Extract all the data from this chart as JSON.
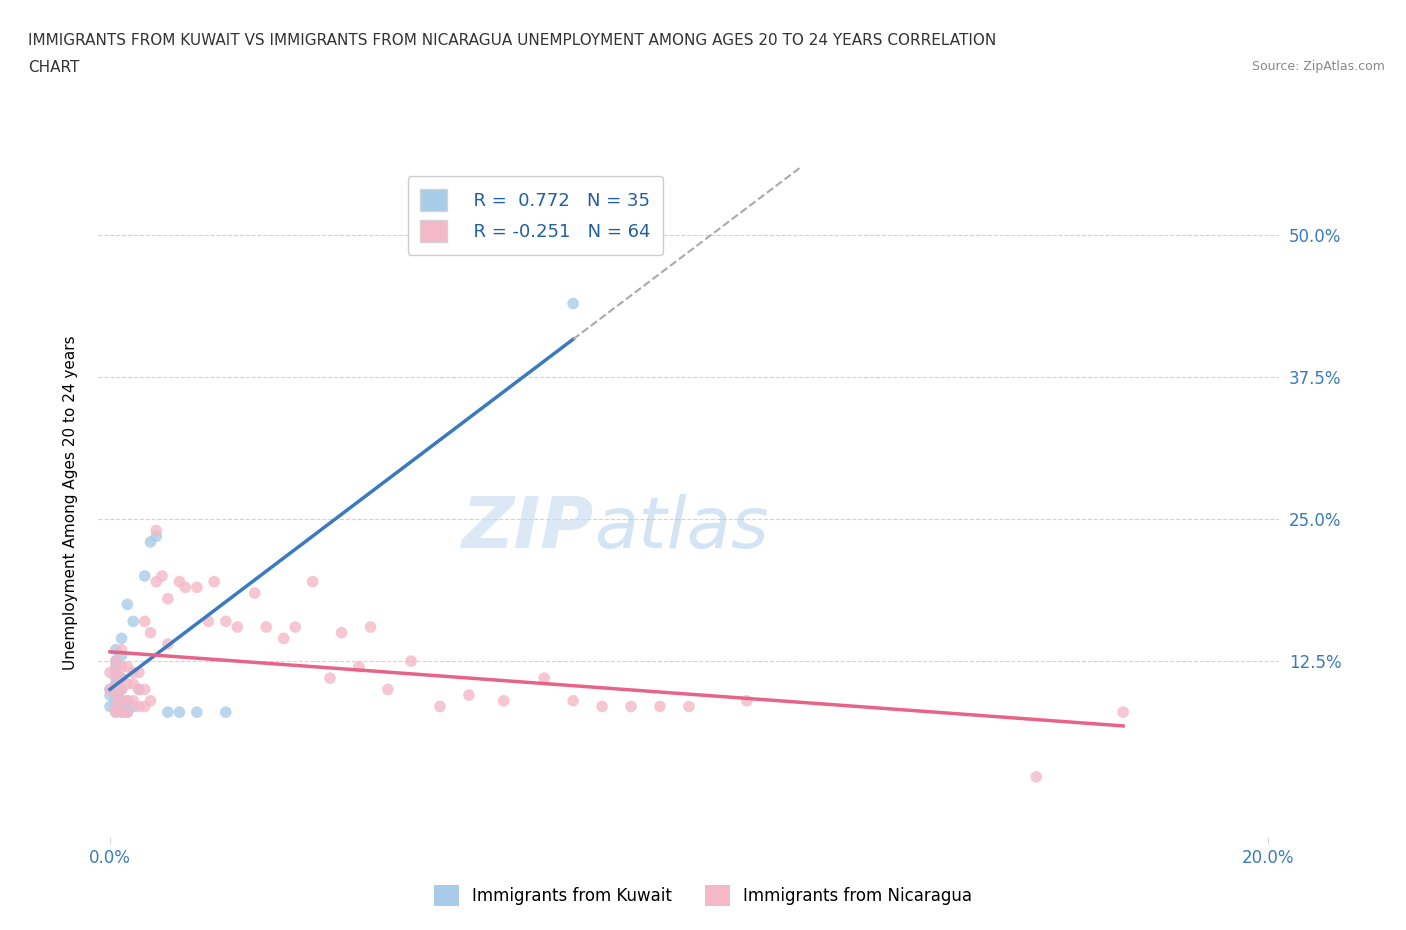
{
  "title_line1": "IMMIGRANTS FROM KUWAIT VS IMMIGRANTS FROM NICARAGUA UNEMPLOYMENT AMONG AGES 20 TO 24 YEARS CORRELATION",
  "title_line2": "CHART",
  "source": "Source: ZipAtlas.com",
  "ylabel": "Unemployment Among Ages 20 to 24 years",
  "kuwait_R": 0.772,
  "kuwait_N": 35,
  "nicaragua_R": -0.251,
  "nicaragua_N": 64,
  "kuwait_color": "#a8cce8",
  "nicaragua_color": "#f4b8c8",
  "kuwait_line_color": "#3a7abf",
  "nicaragua_line_color": "#e8638a",
  "watermark_zip": "ZIP",
  "watermark_atlas": "atlas",
  "xlim": [
    -0.002,
    0.202
  ],
  "ylim": [
    -0.03,
    0.56
  ],
  "xtick_pos": [
    0.0,
    0.2
  ],
  "xtick_labels": [
    "0.0%",
    "20.0%"
  ],
  "ytick_pos": [
    0.125,
    0.25,
    0.375,
    0.5
  ],
  "ytick_labels": [
    "12.5%",
    "25.0%",
    "37.5%",
    "50.0%"
  ],
  "kuwait_x": [
    0.0,
    0.0,
    0.0,
    0.001,
    0.001,
    0.001,
    0.001,
    0.001,
    0.001,
    0.001,
    0.001,
    0.001,
    0.001,
    0.001,
    0.002,
    0.002,
    0.002,
    0.002,
    0.002,
    0.002,
    0.002,
    0.003,
    0.003,
    0.003,
    0.004,
    0.004,
    0.005,
    0.006,
    0.007,
    0.008,
    0.01,
    0.012,
    0.015,
    0.02,
    0.08
  ],
  "kuwait_y": [
    0.085,
    0.095,
    0.1,
    0.08,
    0.085,
    0.09,
    0.095,
    0.1,
    0.105,
    0.11,
    0.115,
    0.12,
    0.125,
    0.135,
    0.08,
    0.085,
    0.09,
    0.1,
    0.11,
    0.13,
    0.145,
    0.08,
    0.09,
    0.175,
    0.085,
    0.16,
    0.1,
    0.2,
    0.23,
    0.235,
    0.08,
    0.08,
    0.08,
    0.08,
    0.44
  ],
  "nicaragua_x": [
    0.0,
    0.0,
    0.001,
    0.001,
    0.001,
    0.001,
    0.001,
    0.001,
    0.002,
    0.002,
    0.002,
    0.002,
    0.002,
    0.002,
    0.003,
    0.003,
    0.003,
    0.003,
    0.004,
    0.004,
    0.004,
    0.005,
    0.005,
    0.005,
    0.006,
    0.006,
    0.006,
    0.007,
    0.007,
    0.008,
    0.008,
    0.009,
    0.01,
    0.01,
    0.012,
    0.013,
    0.015,
    0.017,
    0.018,
    0.02,
    0.022,
    0.025,
    0.027,
    0.03,
    0.032,
    0.035,
    0.038,
    0.04,
    0.043,
    0.045,
    0.048,
    0.052,
    0.057,
    0.062,
    0.068,
    0.075,
    0.08,
    0.085,
    0.09,
    0.095,
    0.1,
    0.11,
    0.175,
    0.16
  ],
  "nicaragua_y": [
    0.1,
    0.115,
    0.08,
    0.085,
    0.095,
    0.105,
    0.115,
    0.125,
    0.08,
    0.09,
    0.1,
    0.11,
    0.12,
    0.135,
    0.08,
    0.09,
    0.105,
    0.12,
    0.09,
    0.105,
    0.115,
    0.085,
    0.1,
    0.115,
    0.085,
    0.1,
    0.16,
    0.09,
    0.15,
    0.195,
    0.24,
    0.2,
    0.18,
    0.14,
    0.195,
    0.19,
    0.19,
    0.16,
    0.195,
    0.16,
    0.155,
    0.185,
    0.155,
    0.145,
    0.155,
    0.195,
    0.11,
    0.15,
    0.12,
    0.155,
    0.1,
    0.125,
    0.085,
    0.095,
    0.09,
    0.11,
    0.09,
    0.085,
    0.085,
    0.085,
    0.085,
    0.09,
    0.08,
    0.023
  ]
}
